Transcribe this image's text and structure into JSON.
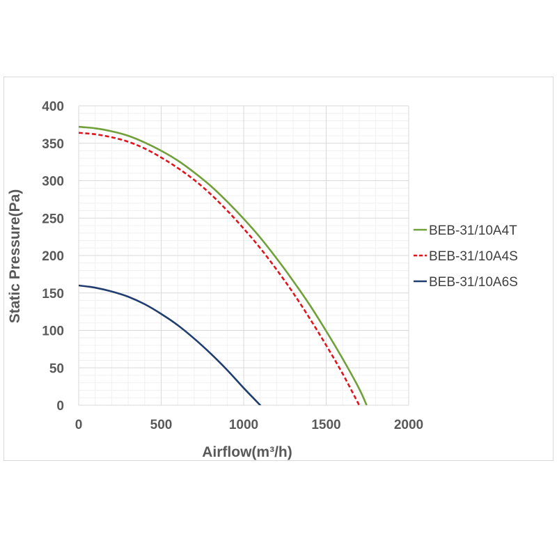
{
  "chart_data": {
    "type": "line",
    "xlabel": "Airflow(m³/h)",
    "ylabel": "Static Pressure(Pa)",
    "xlim": [
      0,
      2000
    ],
    "ylim": [
      0,
      400
    ],
    "x_ticks": [
      "0",
      "500",
      "1000",
      "1500",
      "2000"
    ],
    "y_ticks": [
      "0",
      "50",
      "100",
      "150",
      "200",
      "250",
      "300",
      "350",
      "400"
    ],
    "grid": true,
    "legend_position": "right",
    "series": [
      {
        "name": "BEB-31/10A4T",
        "color": "#70a03a",
        "style": "solid",
        "x": [
          0,
          100,
          200,
          300,
          400,
          500,
          600,
          700,
          800,
          900,
          1000,
          1100,
          1200,
          1300,
          1400,
          1500,
          1600,
          1700,
          1745
        ],
        "y": [
          372,
          370,
          366,
          360,
          351,
          340,
          327,
          311,
          293,
          272,
          249,
          224,
          196,
          166,
          134,
          99,
          62,
          22,
          0
        ]
      },
      {
        "name": "BEB-31/10A4S",
        "color": "#e0141e",
        "style": "dashed",
        "x": [
          0,
          100,
          200,
          300,
          400,
          500,
          600,
          700,
          800,
          900,
          1000,
          1100,
          1200,
          1300,
          1400,
          1500,
          1600,
          1700
        ],
        "y": [
          364,
          362,
          358,
          352,
          343,
          331,
          317,
          301,
          282,
          260,
          236,
          210,
          181,
          150,
          116,
          80,
          42,
          0
        ]
      },
      {
        "name": "BEB-31/10A6S",
        "color": "#1f3d6e",
        "style": "solid",
        "x": [
          0,
          100,
          200,
          300,
          400,
          500,
          600,
          700,
          800,
          900,
          1000,
          1100,
          1150
        ],
        "y": [
          160,
          157,
          152,
          145,
          135,
          122,
          107,
          89,
          69,
          47,
          23,
          0,
          -12
        ]
      }
    ]
  }
}
